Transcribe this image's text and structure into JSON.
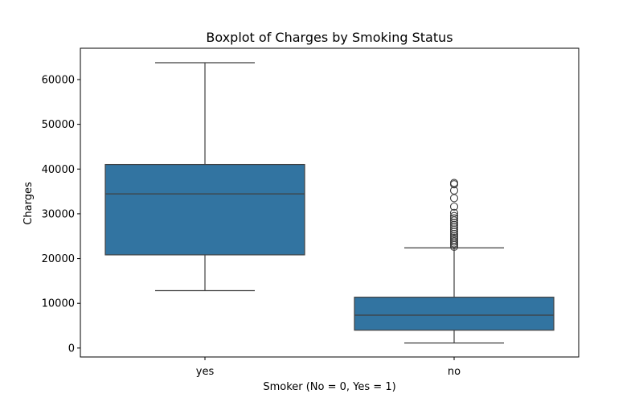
{
  "chart_data": {
    "type": "box",
    "title": "Boxplot of Charges by Smoking Status",
    "xlabel": "Smoker (No = 0, Yes = 1)",
    "ylabel": "Charges",
    "ylim": [
      -2000,
      67000
    ],
    "yticks": [
      0,
      10000,
      20000,
      30000,
      40000,
      50000,
      60000
    ],
    "ytick_labels": [
      "0",
      "10000",
      "20000",
      "30000",
      "40000",
      "50000",
      "60000"
    ],
    "categories": [
      "yes",
      "no"
    ],
    "boxes": [
      {
        "category": "yes",
        "whisker_low": 12830,
        "q1": 20826,
        "median": 34456,
        "q3": 41019,
        "whisker_high": 63770,
        "outliers": []
      },
      {
        "category": "no",
        "whisker_low": 1122,
        "q1": 3986,
        "median": 7345,
        "q3": 11362,
        "whisker_high": 22395,
        "outliers": [
          22630,
          23040,
          23400,
          23800,
          24200,
          24600,
          25000,
          25500,
          26000,
          26500,
          27000,
          27500,
          28000,
          28500,
          29000,
          29500,
          30200,
          31600,
          33500,
          35200,
          36600,
          36900
        ]
      }
    ],
    "box_color": "#3274a1",
    "line_color": "#3f3f3f",
    "grid": false,
    "legend": "none"
  }
}
